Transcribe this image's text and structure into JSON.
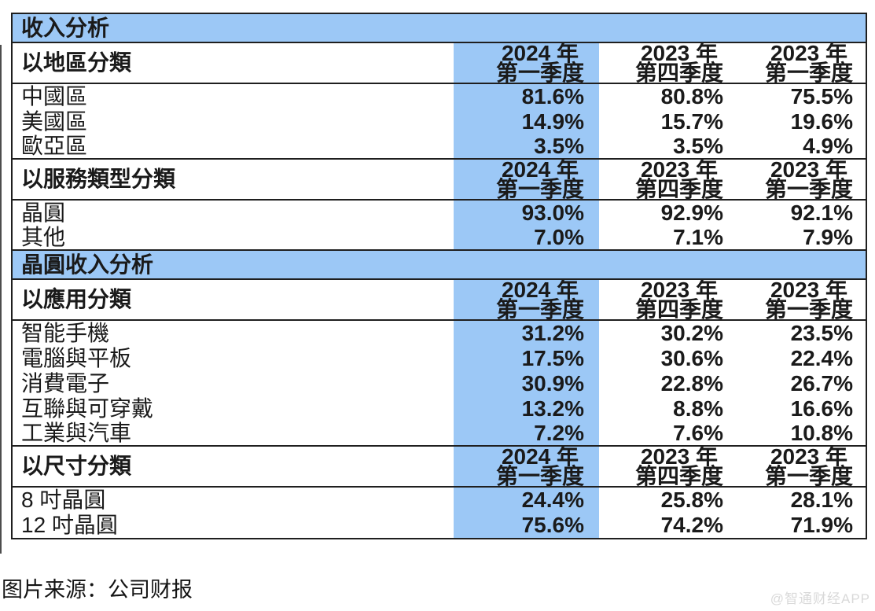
{
  "source_caption": "图片来源：公司财报",
  "watermark": "@智通财经APP",
  "colors": {
    "highlight_blue": "#9cc8f6",
    "border": "#1f1f1f",
    "watermark_gray": "#d9d9d9"
  },
  "table": {
    "quarters": [
      {
        "line1": "2024 年",
        "line2": "第一季度"
      },
      {
        "line1": "2023 年",
        "line2": "第四季度"
      },
      {
        "line1": "2023 年",
        "line2": "第一季度"
      }
    ],
    "sections": [
      {
        "title": "收入分析",
        "groups": [
          {
            "label": "以地區分類",
            "rows": [
              {
                "label": "中國區",
                "values": [
                  "81.6%",
                  "80.8%",
                  "75.5%"
                ]
              },
              {
                "label": "美國區",
                "values": [
                  "14.9%",
                  "15.7%",
                  "19.6%"
                ]
              },
              {
                "label": "歐亞區",
                "values": [
                  "3.5%",
                  "3.5%",
                  "4.9%"
                ]
              }
            ]
          },
          {
            "label": "以服務類型分類",
            "rows": [
              {
                "label": "晶圓",
                "values": [
                  "93.0%",
                  "92.9%",
                  "92.1%"
                ]
              },
              {
                "label": "其他",
                "values": [
                  "7.0%",
                  "7.1%",
                  "7.9%"
                ]
              }
            ]
          }
        ]
      },
      {
        "title": "晶圓收入分析",
        "groups": [
          {
            "label": "以應用分類",
            "rows": [
              {
                "label": "智能手機",
                "values": [
                  "31.2%",
                  "30.2%",
                  "23.5%"
                ]
              },
              {
                "label": "電腦與平板",
                "values": [
                  "17.5%",
                  "30.6%",
                  "22.4%"
                ]
              },
              {
                "label": "消費電子",
                "values": [
                  "30.9%",
                  "22.8%",
                  "26.7%"
                ]
              },
              {
                "label": "互聯與可穿戴",
                "values": [
                  "13.2%",
                  "8.8%",
                  "16.6%"
                ]
              },
              {
                "label": "工業與汽車",
                "values": [
                  "7.2%",
                  "7.6%",
                  "10.8%"
                ]
              }
            ]
          },
          {
            "label": "以尺寸分類",
            "rows": [
              {
                "label": "8 吋晶圓",
                "values": [
                  "24.4%",
                  "25.8%",
                  "28.1%"
                ]
              },
              {
                "label": "12 吋晶圓",
                "values": [
                  "75.6%",
                  "74.2%",
                  "71.9%"
                ]
              }
            ]
          }
        ]
      }
    ]
  }
}
